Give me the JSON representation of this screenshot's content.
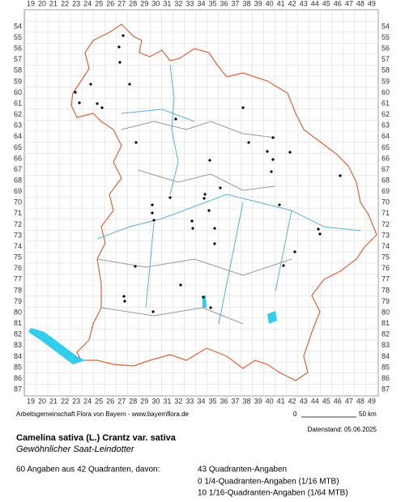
{
  "grid": {
    "columns": [
      19,
      20,
      21,
      22,
      23,
      24,
      25,
      26,
      27,
      28,
      29,
      30,
      31,
      32,
      33,
      34,
      35,
      36,
      37,
      38,
      39,
      40,
      41,
      42,
      43,
      44,
      45,
      46,
      47,
      48,
      49
    ],
    "rows": [
      54,
      55,
      56,
      57,
      58,
      59,
      60,
      61,
      62,
      63,
      64,
      65,
      66,
      67,
      68,
      69,
      70,
      71,
      72,
      73,
      74,
      75,
      76,
      77,
      78,
      79,
      80,
      81,
      82,
      83,
      84,
      85,
      86,
      87
    ]
  },
  "footer": {
    "credit": "Arbeitsgemeinschaft Flora von Bayern - www.bayernflora.de",
    "scale_start": "0",
    "scale_end": "50 km",
    "date": "Datenstand: 05.06.2025"
  },
  "species": {
    "name": "Camelina sativa (L.) Crantz var. sativa",
    "common": "Gewöhnlicher Saat-Leindotter"
  },
  "summary": {
    "total": "60 Angaben aus 42 Quadranten, davon:",
    "details": [
      "43 Quadranten-Angaben",
      "0 1/4-Quadranten-Angaben (1/16 MTB)",
      "10 1/16-Quadranten-Angaben (1/64 MTB)"
    ]
  }
}
